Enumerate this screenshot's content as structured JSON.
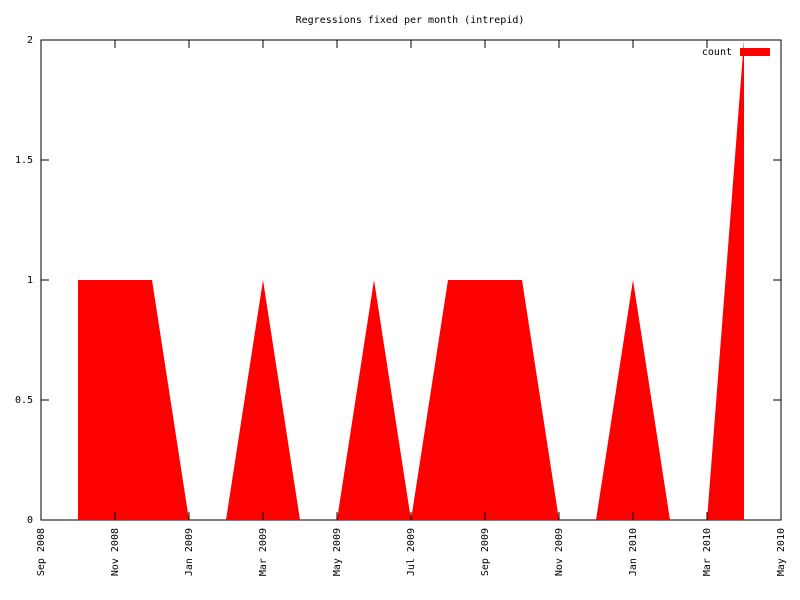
{
  "chart_data": {
    "type": "area",
    "title": "Regressions fixed per month (intrepid)",
    "x": [
      "2008-10",
      "2008-11",
      "2008-12",
      "2009-01",
      "2009-02",
      "2009-03",
      "2009-04",
      "2009-05",
      "2009-06",
      "2009-07",
      "2009-08",
      "2009-09",
      "2009-10",
      "2009-11",
      "2009-12",
      "2010-01",
      "2010-02",
      "2010-03",
      "2010-04"
    ],
    "series": [
      {
        "name": "count",
        "color": "#ff0000",
        "values": [
          1,
          1,
          1,
          0,
          0,
          1,
          0,
          0,
          1,
          0,
          1,
          1,
          1,
          0,
          0,
          1,
          0,
          0,
          2
        ]
      }
    ],
    "xlim": [
      "2008-09",
      "2010-05"
    ],
    "xticks": [
      {
        "value": "2008-09",
        "label": "Sep 2008"
      },
      {
        "value": "2008-11",
        "label": "Nov 2008"
      },
      {
        "value": "2009-01",
        "label": "Jan 2009"
      },
      {
        "value": "2009-03",
        "label": "Mar 2009"
      },
      {
        "value": "2009-05",
        "label": "May 2009"
      },
      {
        "value": "2009-07",
        "label": "Jul 2009"
      },
      {
        "value": "2009-09",
        "label": "Sep 2009"
      },
      {
        "value": "2009-11",
        "label": "Nov 2009"
      },
      {
        "value": "2010-01",
        "label": "Jan 2010"
      },
      {
        "value": "2010-03",
        "label": "Mar 2010"
      },
      {
        "value": "2010-05",
        "label": "May 2010"
      }
    ],
    "ylim": [
      0,
      2
    ],
    "yticks": [
      0,
      0.5,
      1,
      1.5,
      2
    ],
    "grid": false,
    "legend": "top-right"
  }
}
